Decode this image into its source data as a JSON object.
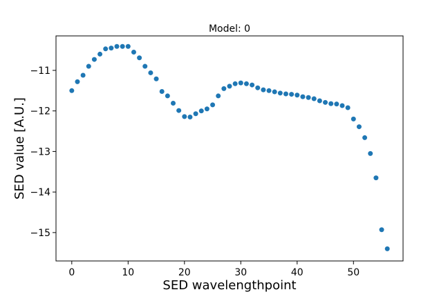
{
  "chart_data": {
    "type": "scatter",
    "title": "Model: 0",
    "xlabel": "SED wavelengthpoint",
    "ylabel": "SED value [A.U.]",
    "xlim": [
      -2.8,
      58.8
    ],
    "ylim": [
      -15.7,
      -10.15
    ],
    "xticks": [
      0,
      10,
      20,
      30,
      40,
      50
    ],
    "yticks": [
      -11,
      -12,
      -13,
      -14,
      -15
    ],
    "xtick_labels": [
      "0",
      "10",
      "20",
      "30",
      "40",
      "50"
    ],
    "ytick_labels": [
      "−11",
      "−12",
      "−13",
      "−14",
      "−15"
    ],
    "grid": false,
    "marker_color": "#1f77b4",
    "series": [
      {
        "x": [
          0,
          1,
          2,
          3,
          4,
          5,
          6,
          7,
          8,
          9,
          10,
          11,
          12,
          13,
          14,
          15,
          16,
          17,
          18,
          19,
          20,
          21,
          22,
          23,
          24,
          25,
          26,
          27,
          28,
          29,
          30,
          31,
          32,
          33,
          34,
          35,
          36,
          37,
          38,
          39,
          40,
          41,
          42,
          43,
          44,
          45,
          46,
          47,
          48,
          49,
          50,
          51,
          52,
          53,
          54,
          55,
          56
        ],
        "y": [
          -11.5,
          -11.28,
          -11.12,
          -10.9,
          -10.73,
          -10.6,
          -10.47,
          -10.45,
          -10.41,
          -10.41,
          -10.41,
          -10.55,
          -10.69,
          -10.9,
          -11.06,
          -11.21,
          -11.52,
          -11.63,
          -11.81,
          -11.99,
          -12.14,
          -12.15,
          -12.07,
          -12.0,
          -11.95,
          -11.85,
          -11.63,
          -11.45,
          -11.39,
          -11.33,
          -11.31,
          -11.33,
          -11.36,
          -11.43,
          -11.48,
          -11.5,
          -11.53,
          -11.56,
          -11.58,
          -11.59,
          -11.61,
          -11.65,
          -11.67,
          -11.7,
          -11.75,
          -11.79,
          -11.82,
          -11.83,
          -11.87,
          -11.92,
          -12.2,
          -12.39,
          -12.66,
          -13.05,
          -13.65,
          -14.93,
          -15.4
        ]
      }
    ]
  }
}
